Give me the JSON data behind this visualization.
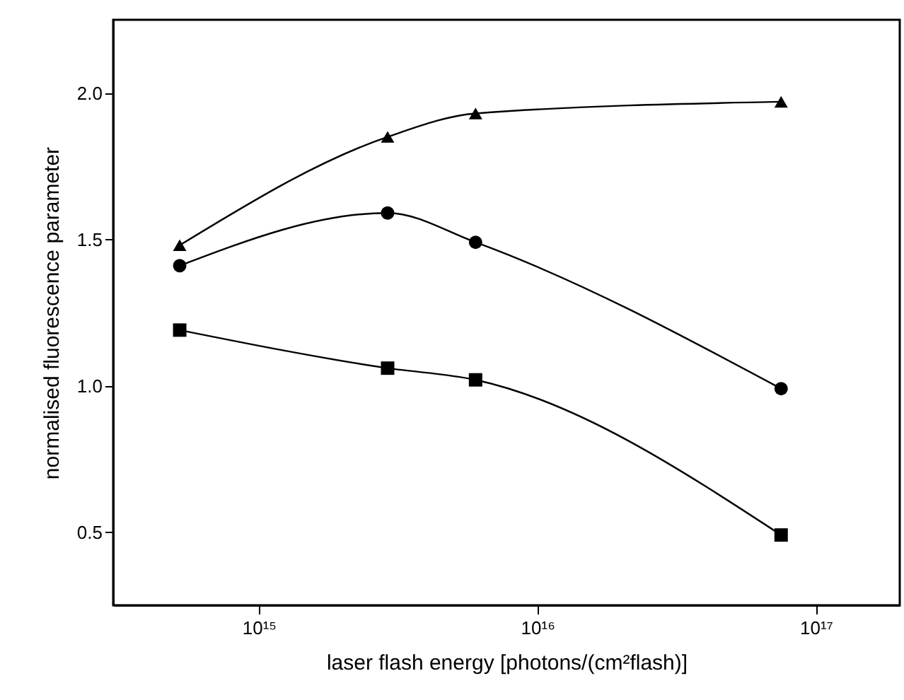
{
  "chart_data": {
    "type": "line",
    "xlabel": "laser flash energy [photons/(cm²flash)]",
    "ylabel": "normalised fluorescence parameter",
    "x": [
      520000000000000.0,
      2900000000000000.0,
      6000000000000000.0,
      7.5e+16
    ],
    "series": [
      {
        "color": "#000000",
        "marker": "triangle",
        "values": [
          1.48,
          1.85,
          1.93,
          1.97
        ]
      },
      {
        "color": "#000000",
        "marker": "circle",
        "values": [
          1.41,
          1.59,
          1.49,
          0.99
        ]
      },
      {
        "color": "#000000",
        "marker": "square",
        "values": [
          1.19,
          1.06,
          1.02,
          0.49
        ]
      }
    ],
    "log": "x",
    "xlim": [
      300000000000000.0,
      2e+17
    ],
    "xticks": [
      {
        "value": 1000000000000000.0,
        "label": "10¹⁵"
      },
      {
        "value": 1e+16,
        "label": "10¹⁶"
      },
      {
        "value": 1e+17,
        "label": "10¹⁷"
      }
    ],
    "ylim": [
      0.25,
      2.25
    ],
    "yticks": [
      0.5,
      {
        "value": 1,
        "label": "1.0"
      },
      1.5,
      {
        "value": 2,
        "label": "2.0"
      }
    ],
    "grid": false,
    "line_style": "solid"
  }
}
